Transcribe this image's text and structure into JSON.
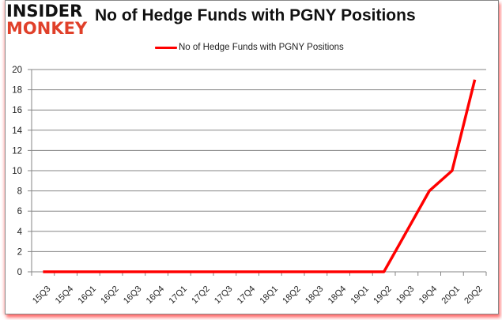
{
  "logo": {
    "line1": "INSIDER",
    "line2": "MONKEY"
  },
  "chart_data": {
    "type": "line",
    "title": "No of Hedge Funds with PGNY Positions",
    "xlabel": "",
    "ylabel": "",
    "ylim": [
      0,
      20
    ],
    "yticks": [
      0,
      2,
      4,
      6,
      8,
      10,
      12,
      14,
      16,
      18,
      20
    ],
    "grid": true,
    "legend_position": "top",
    "categories": [
      "15Q3",
      "15Q4",
      "16Q1",
      "16Q2",
      "16Q3",
      "16Q4",
      "17Q1",
      "17Q2",
      "17Q3",
      "17Q4",
      "18Q1",
      "18Q2",
      "18Q3",
      "18Q4",
      "19Q1",
      "19Q2",
      "19Q3",
      "19Q4",
      "20Q1",
      "20Q2"
    ],
    "series": [
      {
        "name": "No of Hedge Funds with PGNY Positions",
        "color": "#ff0000",
        "values": [
          0,
          0,
          0,
          0,
          0,
          0,
          0,
          0,
          0,
          0,
          0,
          0,
          0,
          0,
          0,
          0,
          4,
          8,
          10,
          19
        ]
      }
    ]
  }
}
